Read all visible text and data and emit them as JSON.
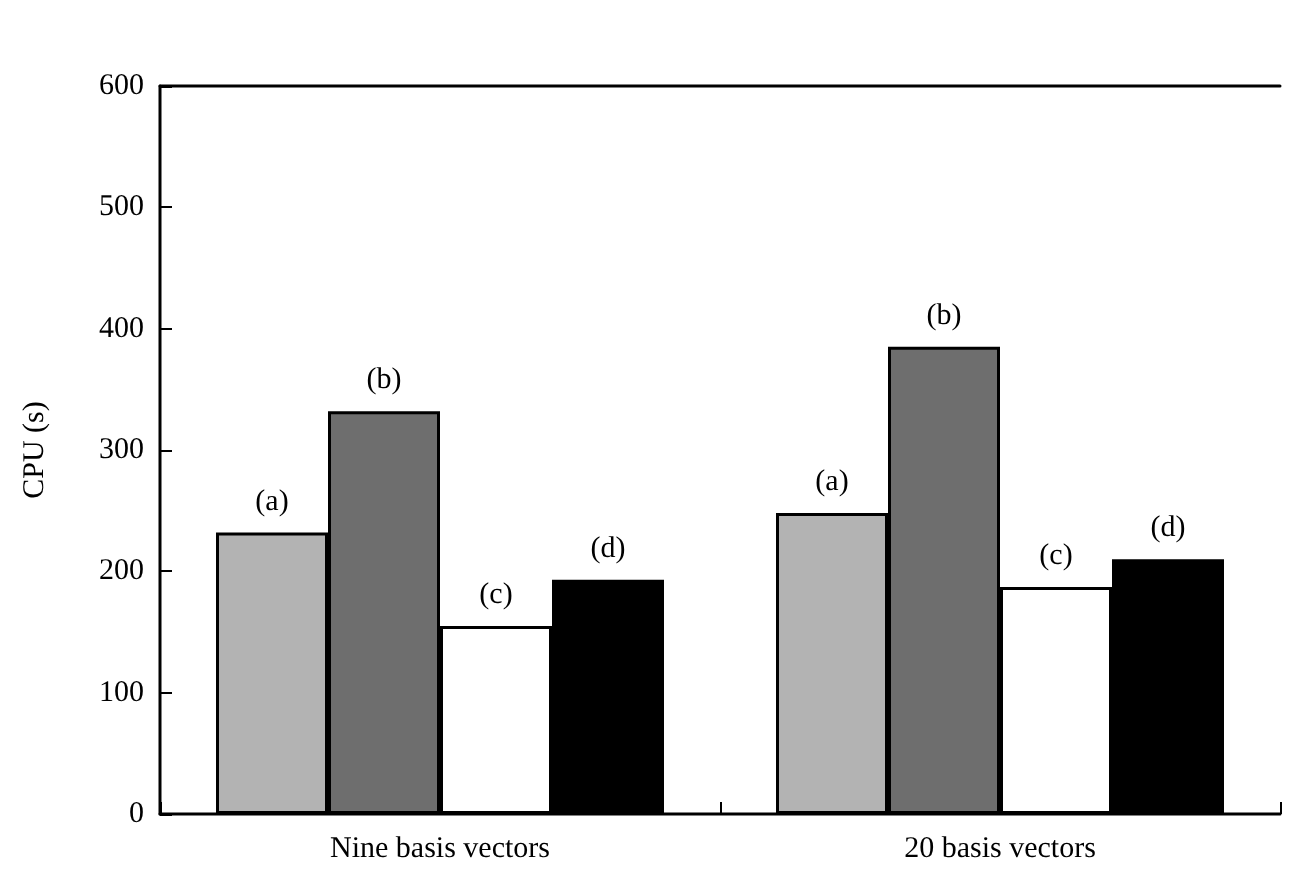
{
  "chart_data": {
    "type": "bar",
    "ylabel": "CPU (s)",
    "categories": [
      "Nine basis vectors",
      "20 basis vectors"
    ],
    "series": [
      {
        "name": "(a)",
        "color": "#b3b3b3",
        "values": [
          232,
          248
        ]
      },
      {
        "name": "(b)",
        "color": "#6e6e6e",
        "values": [
          332,
          385
        ]
      },
      {
        "name": "(c)",
        "color": "#ffffff",
        "values": [
          155,
          187
        ]
      },
      {
        "name": "(d)",
        "color": "#000000",
        "values": [
          193,
          210
        ]
      }
    ],
    "ylim": [
      0,
      600
    ],
    "yticks": [
      0,
      100,
      200,
      300,
      400,
      500,
      600
    ],
    "grid": false,
    "legend": false
  }
}
